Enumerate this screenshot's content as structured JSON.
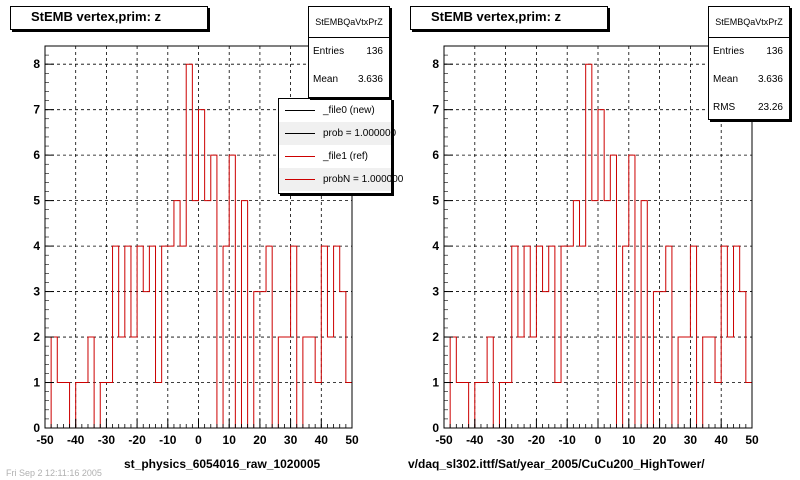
{
  "panels": [
    {
      "title": "StEMB  vertex,prim: z",
      "stats": {
        "name": "StEMBQaVtxPrZ",
        "rows": [
          {
            "label": "Entries",
            "value": "136"
          },
          {
            "label": "Mean",
            "value": "3.636"
          }
        ]
      },
      "legend": [
        {
          "label": "_file0 (new)",
          "color": "#000000"
        },
        {
          "label": "prob = 1.000000",
          "color": "#000000"
        },
        {
          "label": "_file1 (ref)",
          "color": "#cc0000"
        },
        {
          "label": "probN = 1.000000",
          "color": "#cc0000"
        }
      ],
      "caption": "st_physics_6054016_raw_1020005"
    },
    {
      "title": "StEMB  vertex,prim: z",
      "stats": {
        "name": "StEMBQaVtxPrZ",
        "rows": [
          {
            "label": "Entries",
            "value": "136"
          },
          {
            "label": "Mean",
            "value": "3.636"
          },
          {
            "label": "RMS",
            "value": "23.26"
          }
        ]
      },
      "caption": "v/daq_sl302.ittf/Sat/year_2005/CuCu200_HighTower/"
    }
  ],
  "footer": "Fri Sep 2 12:11:16 2005",
  "chart_data": [
    {
      "type": "histogram",
      "title": "StEMB  vertex,prim: z",
      "xlabel": "st_physics_6054016_raw_1020005",
      "ylabel": "",
      "xlim": [
        -50,
        50
      ],
      "ylim": [
        0,
        8.4
      ],
      "x_ticks": [
        -50,
        -40,
        -30,
        -20,
        -10,
        0,
        10,
        20,
        30,
        40,
        50
      ],
      "y_ticks": [
        0,
        1,
        2,
        3,
        4,
        5,
        6,
        7,
        8
      ],
      "grid": true,
      "bin_start": -50,
      "bin_width": 2,
      "series": [
        {
          "name": "_file1 (ref)",
          "color": "#cc0000",
          "values": [
            0,
            2,
            1,
            1,
            0,
            1,
            1,
            2,
            0,
            1,
            1,
            4,
            2,
            4,
            2,
            4,
            3,
            4,
            1,
            4,
            4,
            5,
            4,
            8,
            5,
            7,
            5,
            6,
            0,
            4,
            6,
            0,
            5,
            0,
            3,
            3,
            4,
            0,
            2,
            2,
            4,
            0,
            2,
            2,
            1,
            4,
            2,
            4,
            3,
            1
          ]
        }
      ],
      "stats": {
        "entries": 136,
        "mean": 3.636
      }
    },
    {
      "type": "histogram",
      "title": "StEMB  vertex,prim: z",
      "xlabel": "v/daq_sl302.ittf/Sat/year_2005/CuCu200_HighTower/",
      "ylabel": "",
      "xlim": [
        -50,
        50
      ],
      "ylim": [
        0,
        8.4
      ],
      "x_ticks": [
        -50,
        -40,
        -30,
        -20,
        -10,
        0,
        10,
        20,
        30,
        40,
        50
      ],
      "y_ticks": [
        0,
        1,
        2,
        3,
        4,
        5,
        6,
        7,
        8
      ],
      "grid": true,
      "bin_start": -50,
      "bin_width": 2,
      "series": [
        {
          "name": "",
          "color": "#cc0000",
          "values": [
            0,
            2,
            1,
            1,
            0,
            1,
            1,
            2,
            0,
            1,
            1,
            4,
            2,
            4,
            2,
            4,
            3,
            4,
            1,
            4,
            4,
            5,
            4,
            8,
            5,
            7,
            5,
            6,
            0,
            4,
            6,
            0,
            5,
            0,
            3,
            3,
            4,
            0,
            2,
            2,
            4,
            0,
            2,
            2,
            1,
            4,
            2,
            4,
            3,
            1
          ]
        }
      ],
      "stats": {
        "entries": 136,
        "mean": 3.636,
        "rms": 23.26
      }
    }
  ]
}
